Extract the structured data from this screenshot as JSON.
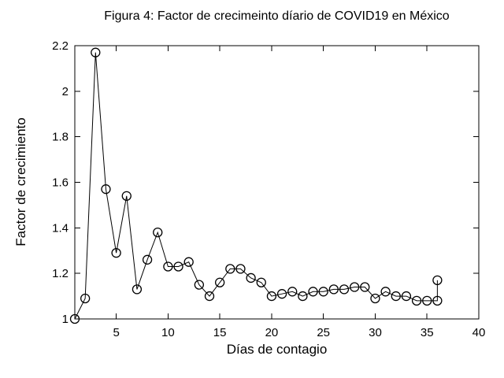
{
  "figure": {
    "background": "#ffffff",
    "foreground": "#000000"
  },
  "chart_data": {
    "type": "line",
    "title": "Figura 4: Factor de crecimeinto díario de COVID19 en México",
    "xlabel": "Días de contagio",
    "ylabel": "Factor de crecimiento",
    "xlim": [
      1,
      40
    ],
    "ylim": [
      1,
      2.2
    ],
    "xticks": [
      5,
      10,
      15,
      20,
      25,
      30,
      35,
      40
    ],
    "xtick_labels": [
      "5",
      "10",
      "15",
      "20",
      "25",
      "30",
      "35",
      "40"
    ],
    "yticks": [
      1,
      1.2,
      1.4,
      1.6,
      1.8,
      2,
      2.2
    ],
    "ytick_labels": [
      "1",
      "1.2",
      "1.4",
      "1.6",
      "1.8",
      "2",
      "2.2"
    ],
    "grid": false,
    "legend": "none",
    "line_color": "#000000",
    "marker": "open-circle",
    "marker_radius_px": 5.5,
    "box": true,
    "ticks_direction": "in",
    "x": [
      1,
      2,
      3,
      4,
      5,
      6,
      7,
      8,
      9,
      10,
      11,
      12,
      13,
      14,
      15,
      16,
      17,
      18,
      19,
      20,
      21,
      22,
      23,
      24,
      25,
      26,
      27,
      28,
      29,
      30,
      31,
      32,
      33,
      34,
      35,
      36,
      36
    ],
    "y": [
      1.0,
      1.09,
      2.17,
      1.57,
      1.29,
      1.54,
      1.13,
      1.26,
      1.38,
      1.23,
      1.23,
      1.25,
      1.15,
      1.1,
      1.16,
      1.22,
      1.22,
      1.18,
      1.16,
      1.1,
      1.11,
      1.12,
      1.1,
      1.12,
      1.12,
      1.13,
      1.13,
      1.14,
      1.14,
      1.09,
      1.12,
      1.1,
      1.1,
      1.08,
      1.08,
      1.08,
      1.17
    ]
  }
}
